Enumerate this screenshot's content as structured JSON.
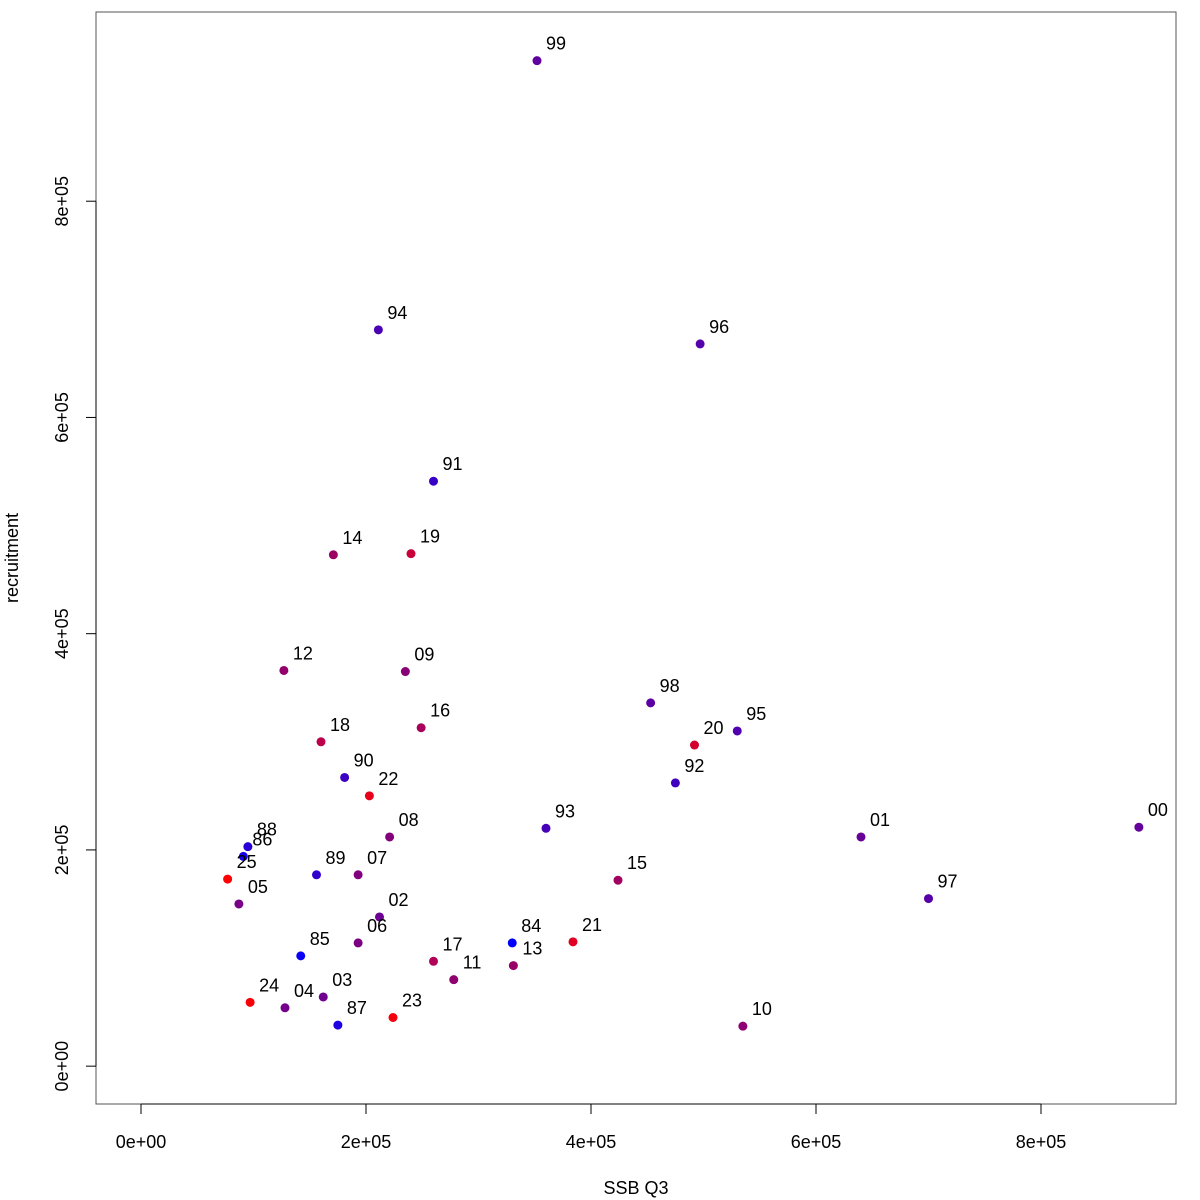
{
  "chart_data": {
    "type": "scatter",
    "title": "",
    "xlabel": "SSB Q3",
    "ylabel": "recruitment",
    "xlim": [
      -40000,
      920000
    ],
    "ylim": [
      -35000,
      975000
    ],
    "x_ticks": [
      0,
      200000,
      400000,
      600000,
      800000
    ],
    "x_tick_labels": [
      "0e+00",
      "2e+05",
      "4e+05",
      "6e+05",
      "8e+05"
    ],
    "y_ticks": [
      0,
      200000,
      400000,
      600000,
      800000
    ],
    "y_tick_labels": [
      "0e+00",
      "2e+05",
      "4e+05",
      "6e+05",
      "8e+05"
    ],
    "grid": false,
    "points": [
      {
        "label": "84",
        "x": 330000,
        "y": 114000,
        "color": "#0000ff"
      },
      {
        "label": "85",
        "x": 142000,
        "y": 102000,
        "color": "#0a00f5"
      },
      {
        "label": "86",
        "x": 91000,
        "y": 194000,
        "color": "#1400eb"
      },
      {
        "label": "87",
        "x": 175000,
        "y": 38000,
        "color": "#1e00e1"
      },
      {
        "label": "88",
        "x": 95000,
        "y": 203000,
        "color": "#2800d7"
      },
      {
        "label": "89",
        "x": 156000,
        "y": 177000,
        "color": "#3200cd"
      },
      {
        "label": "90",
        "x": 181000,
        "y": 267000,
        "color": "#3c00c3"
      },
      {
        "label": "91",
        "x": 260000,
        "y": 541000,
        "color": "#3600c9"
      },
      {
        "label": "92",
        "x": 475000,
        "y": 262000,
        "color": "#4000bf"
      },
      {
        "label": "93",
        "x": 360000,
        "y": 220000,
        "color": "#4600b9"
      },
      {
        "label": "94",
        "x": 211000,
        "y": 681000,
        "color": "#4a00b5"
      },
      {
        "label": "95",
        "x": 530000,
        "y": 310000,
        "color": "#5000af"
      },
      {
        "label": "96",
        "x": 497000,
        "y": 668000,
        "color": "#5400ab"
      },
      {
        "label": "97",
        "x": 700000,
        "y": 155000,
        "color": "#5800a7"
      },
      {
        "label": "98",
        "x": 453000,
        "y": 336000,
        "color": "#5c00a3"
      },
      {
        "label": "99",
        "x": 352000,
        "y": 930000,
        "color": "#60009f"
      },
      {
        "label": "00",
        "x": 887000,
        "y": 221000,
        "color": "#64009b"
      },
      {
        "label": "01",
        "x": 640000,
        "y": 212000,
        "color": "#680097"
      },
      {
        "label": "02",
        "x": 212000,
        "y": 138000,
        "color": "#6c0093"
      },
      {
        "label": "03",
        "x": 162000,
        "y": 64000,
        "color": "#70008f"
      },
      {
        "label": "04",
        "x": 128000,
        "y": 54000,
        "color": "#74008b"
      },
      {
        "label": "05",
        "x": 87000,
        "y": 150000,
        "color": "#780087"
      },
      {
        "label": "06",
        "x": 193000,
        "y": 114000,
        "color": "#7c0083"
      },
      {
        "label": "07",
        "x": 193000,
        "y": 177000,
        "color": "#80007f"
      },
      {
        "label": "08",
        "x": 221000,
        "y": 212000,
        "color": "#84007b"
      },
      {
        "label": "09",
        "x": 235000,
        "y": 365000,
        "color": "#880077"
      },
      {
        "label": "10",
        "x": 535000,
        "y": 37000,
        "color": "#8c0073"
      },
      {
        "label": "11",
        "x": 278000,
        "y": 80000,
        "color": "#90006f"
      },
      {
        "label": "12",
        "x": 127000,
        "y": 366000,
        "color": "#94006b"
      },
      {
        "label": "13",
        "x": 331000,
        "y": 93000,
        "color": "#980067"
      },
      {
        "label": "14",
        "x": 171000,
        "y": 473000,
        "color": "#9c0063"
      },
      {
        "label": "15",
        "x": 424000,
        "y": 172000,
        "color": "#a0005f"
      },
      {
        "label": "16",
        "x": 249000,
        "y": 313000,
        "color": "#a8005b"
      },
      {
        "label": "17",
        "x": 260000,
        "y": 97000,
        "color": "#b00057"
      },
      {
        "label": "18",
        "x": 160000,
        "y": 300000,
        "color": "#bc004b"
      },
      {
        "label": "19",
        "x": 240000,
        "y": 474000,
        "color": "#c8003a"
      },
      {
        "label": "20",
        "x": 492000,
        "y": 297000,
        "color": "#d4002e"
      },
      {
        "label": "21",
        "x": 384000,
        "y": 115000,
        "color": "#e00022"
      },
      {
        "label": "22",
        "x": 203000,
        "y": 250000,
        "color": "#ea0018"
      },
      {
        "label": "23",
        "x": 224000,
        "y": 45000,
        "color": "#f2000e"
      },
      {
        "label": "24",
        "x": 97000,
        "y": 59000,
        "color": "#f80008"
      },
      {
        "label": "25",
        "x": 77000,
        "y": 173000,
        "color": "#ff0000"
      }
    ]
  }
}
